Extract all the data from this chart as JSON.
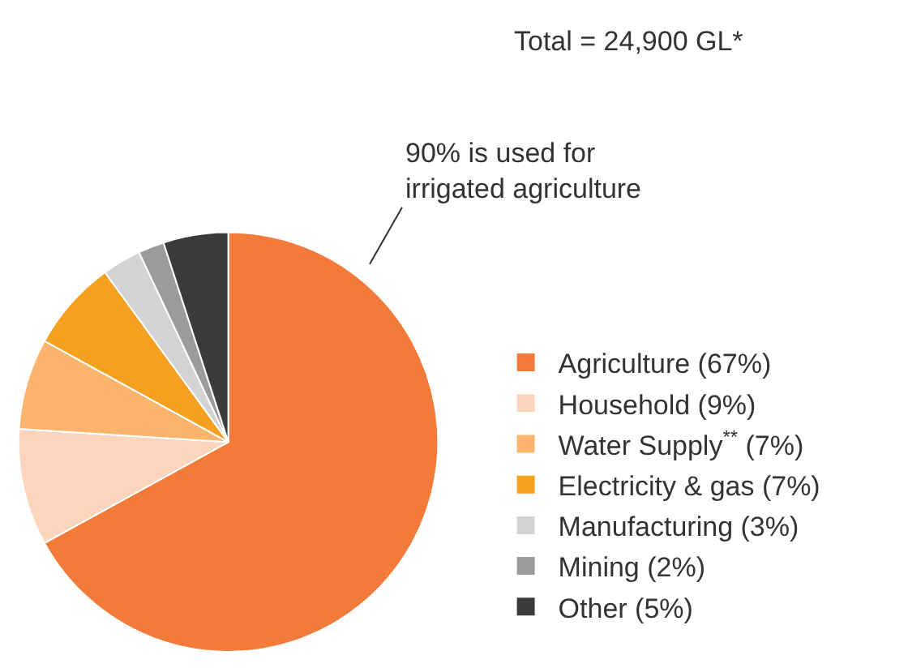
{
  "chart_data": {
    "type": "pie",
    "categories": [
      "Agriculture (67%)",
      "Household (9%)",
      "Water Supply$^{**}$ (7%)",
      "Electricity & gas (7%)",
      "Manufacturing (3%)",
      "Mining (2%)",
      "Other (5%)"
    ],
    "values": [
      67,
      9,
      7,
      7,
      3,
      2,
      5
    ],
    "colors": [
      "#f37b3a",
      "#fdd5bd",
      "#fbb46c",
      "#f5a020",
      "#d3d3d5",
      "#9b9b9b",
      "#3b3b3b"
    ],
    "annotations": [
      "Total = 24,900 GL*",
      "90% is used for\nirrigated agriculture"
    ],
    "legend": "right"
  }
}
